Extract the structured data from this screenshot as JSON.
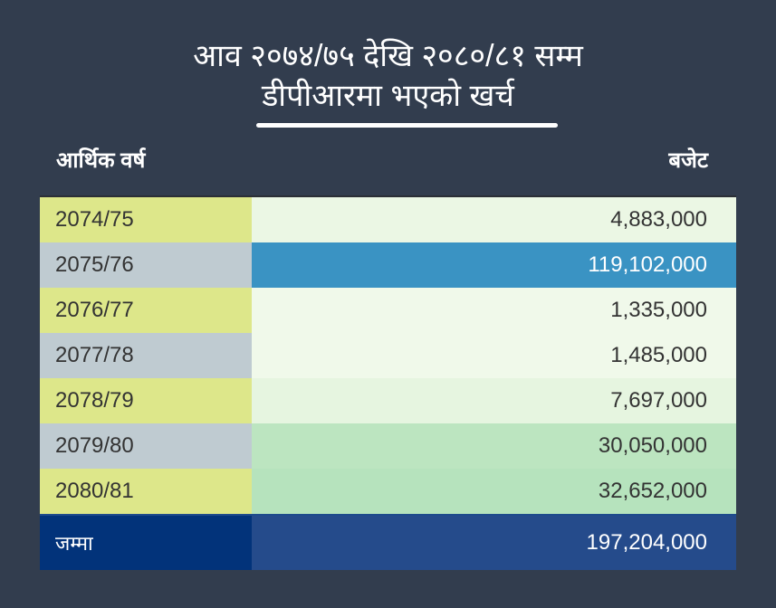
{
  "title": {
    "line1": "आव २०७४/७५ देखि २०८०/८१ सम्म",
    "line2": "डीपीआरमा भएको खर्च"
  },
  "table": {
    "headers": {
      "year": "आर्थिक वर्ष",
      "budget": "बजेट"
    },
    "rows": [
      {
        "year": "2074/75",
        "budget": "4,883,000",
        "color": "#ebf7e4"
      },
      {
        "year": "2075/76",
        "budget": "119,102,000",
        "color": "#3a93c3"
      },
      {
        "year": "2076/77",
        "budget": "1,335,000",
        "color": "#f0f9ea"
      },
      {
        "year": "2077/78",
        "budget": "1,485,000",
        "color": "#f0f9ea"
      },
      {
        "year": "2078/79",
        "budget": "7,697,000",
        "color": "#e6f5e0"
      },
      {
        "year": "2079/80",
        "budget": "30,050,000",
        "color": "#bce5c0"
      },
      {
        "year": "2080/81",
        "budget": "32,652,000",
        "color": "#b6e3bd"
      }
    ],
    "total": {
      "label": "जम्मा",
      "budget": "197,204,000"
    }
  }
}
